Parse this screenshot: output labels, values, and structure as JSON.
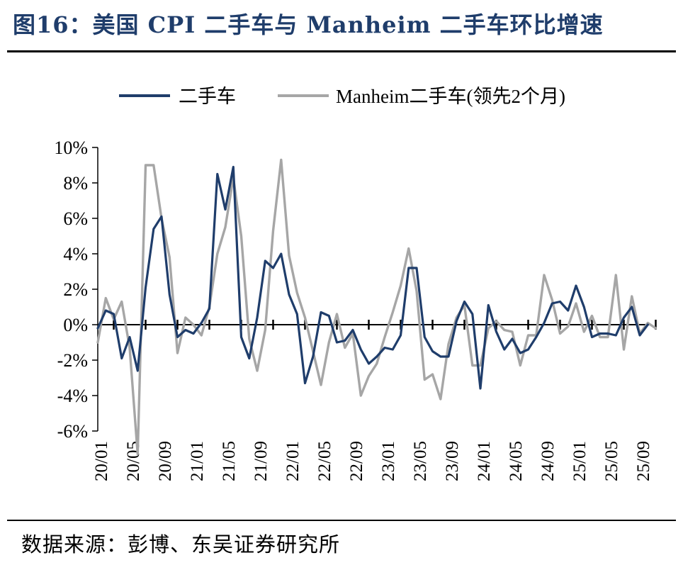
{
  "title": "图16：美国 CPI 二手车与 Manheim 二手车环比增速",
  "source": "数据来源：彭博、东吴证券研究所",
  "chart_data": {
    "type": "line",
    "x_tick_labels": [
      "20/01",
      "20/05",
      "20/09",
      "21/01",
      "21/05",
      "21/09",
      "22/01",
      "22/05",
      "22/09",
      "23/01",
      "23/05",
      "23/09",
      "24/01",
      "24/05",
      "24/09",
      "25/01",
      "25/05",
      "25/09"
    ],
    "y_tick_labels": [
      "10%",
      "8%",
      "6%",
      "4%",
      "2%",
      "0%",
      "-2%",
      "-4%",
      "-6%"
    ],
    "ylim": [
      -6,
      10
    ],
    "grid": false,
    "legend_position": "top",
    "series": [
      {
        "name": "二手车",
        "color": "#1f3d6b",
        "values": [
          -0.2,
          0.8,
          0.6,
          -1.9,
          -0.7,
          -2.6,
          2.1,
          5.4,
          6.1,
          1.7,
          -0.7,
          -0.3,
          -0.5,
          0.1,
          0.9,
          8.5,
          6.5,
          8.9,
          -0.7,
          -1.9,
          0.4,
          3.6,
          3.2,
          4.0,
          1.7,
          0.6,
          -3.3,
          -1.8,
          0.7,
          0.5,
          -1.0,
          -0.9,
          -0.3,
          -1.4,
          -2.2,
          -1.8,
          -1.3,
          -1.4,
          -0.6,
          3.2,
          3.2,
          -0.7,
          -1.5,
          -1.8,
          -1.8,
          0.2,
          1.3,
          0.6,
          -3.6,
          1.1,
          -0.4,
          -1.4,
          -0.8,
          -1.6,
          -1.4,
          -0.7,
          0.1,
          1.2,
          1.3,
          0.8,
          2.2,
          1.0,
          -0.7,
          -0.5,
          -0.5,
          -0.6,
          0.4,
          1.0,
          -0.6,
          0.0
        ]
      },
      {
        "name": "Manheim二手车(领先2个月)",
        "color": "#a6a6a6",
        "values": [
          -1.0,
          1.5,
          0.3,
          1.3,
          -1.3,
          -7.3,
          9.0,
          9.0,
          6.0,
          3.8,
          -1.6,
          0.4,
          0.0,
          -0.6,
          1.0,
          4.0,
          5.5,
          8.3,
          5.0,
          -0.8,
          -2.6,
          -0.3,
          5.3,
          9.3,
          3.9,
          1.8,
          0.4,
          -1.5,
          -3.4,
          -1.0,
          0.6,
          -1.3,
          -0.5,
          -4.0,
          -2.9,
          -2.2,
          -0.7,
          0.7,
          2.2,
          4.3,
          1.9,
          -3.1,
          -2.8,
          -4.2,
          -1.1,
          0.4,
          1.1,
          -2.3,
          -2.3,
          -0.2,
          0.2,
          -0.3,
          -0.4,
          -2.3,
          -0.6,
          -0.6,
          2.8,
          1.4,
          -0.5,
          -0.1,
          1.2,
          -0.4,
          0.5,
          -0.7,
          -0.7,
          2.8,
          -1.4,
          1.6,
          -0.5,
          0.1,
          -0.2
        ]
      }
    ]
  }
}
